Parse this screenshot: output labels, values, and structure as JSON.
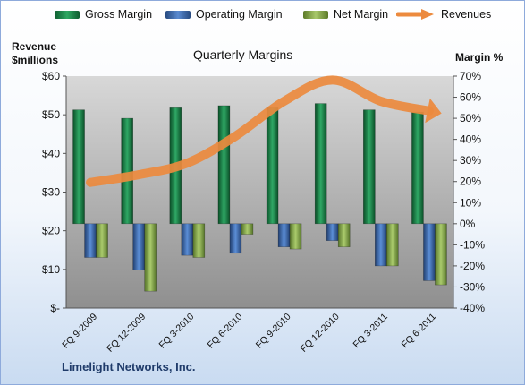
{
  "chart_data": {
    "type": "bar",
    "title": "Quarterly Margins",
    "company": "Limelight Networks, Inc.",
    "left_axis_title": [
      "Revenue",
      "$millions"
    ],
    "right_axis_title": "Margin %",
    "left_axis": {
      "min": 0,
      "max": 60,
      "step": 10,
      "tick_labels": [
        "$-",
        "$10",
        "$20",
        "$30",
        "$40",
        "$50",
        "$60"
      ]
    },
    "right_axis": {
      "min": -40,
      "max": 70,
      "step": 10,
      "tick_labels": [
        "-40%",
        "-30%",
        "-20%",
        "-10%",
        "0%",
        "10%",
        "20%",
        "30%",
        "40%",
        "50%",
        "60%",
        "70%"
      ]
    },
    "categories": [
      "FQ 9-2009",
      "FQ 12-2009",
      "FQ 3-2010",
      "FQ 6-2010",
      "FQ 9-2010",
      "FQ 12-2010",
      "FQ 3-2011",
      "FQ 6-2011"
    ],
    "series": [
      {
        "name": "Gross Margin",
        "axis": "right",
        "kind": "bar",
        "color": "#1e8c4e",
        "values": [
          54,
          50,
          55,
          56,
          55,
          57,
          54,
          53
        ]
      },
      {
        "name": "Operating Margin",
        "axis": "right",
        "kind": "bar",
        "color": "#3f6fb5",
        "values": [
          -16,
          -22,
          -15,
          -14,
          -11,
          -8,
          -20,
          -27
        ]
      },
      {
        "name": "Net Margin",
        "axis": "right",
        "kind": "bar",
        "color": "#8bb04a",
        "values": [
          -16,
          -32,
          -16,
          -5,
          -12,
          -11,
          -20,
          -29
        ]
      },
      {
        "name": "Revenues",
        "axis": "left",
        "kind": "line",
        "color": "#ec8a3e",
        "values": [
          32.5,
          34.5,
          37.5,
          44.5,
          53.5,
          59.0,
          53.5,
          51.0
        ]
      }
    ],
    "grid": false,
    "legend_position": "top"
  }
}
